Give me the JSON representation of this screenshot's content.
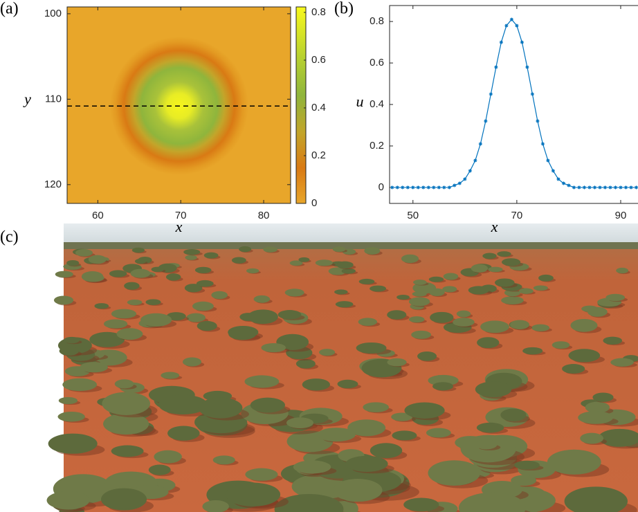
{
  "chart_data": [
    {
      "type": "heatmap",
      "label": "(a)",
      "xlabel": "x",
      "ylabel": "y",
      "xlim": [
        56.3,
        83.25
      ],
      "ylim": [
        122.2,
        99.2
      ],
      "xticks": [
        60,
        70,
        80
      ],
      "yticks": [
        100,
        110,
        120
      ],
      "hline": 110.8,
      "colorbar": {
        "clim": [
          0,
          0.823
        ],
        "ticks": [
          0,
          0.2,
          0.4,
          0.6,
          0.8
        ]
      }
    },
    {
      "type": "line",
      "label": "(b)",
      "xlabel": "x",
      "ylabel": "u",
      "color": "#0072bd",
      "x": [
        46,
        47,
        48,
        49,
        50,
        51,
        52,
        53,
        54,
        55,
        56,
        57,
        58,
        59,
        60,
        61,
        62,
        63,
        64,
        65,
        66,
        67,
        68,
        69,
        70,
        71,
        72,
        73,
        74,
        75,
        76,
        77,
        78,
        79,
        80,
        81,
        82,
        83,
        84,
        85,
        86,
        87,
        88,
        89,
        90,
        91,
        92,
        93
      ],
      "values": [
        0,
        0,
        0,
        0,
        0,
        0,
        0,
        0,
        0,
        0,
        0,
        0,
        0.01,
        0.02,
        0.04,
        0.08,
        0.13,
        0.21,
        0.32,
        0.45,
        0.58,
        0.7,
        0.78,
        0.81,
        0.78,
        0.7,
        0.58,
        0.45,
        0.32,
        0.21,
        0.13,
        0.08,
        0.04,
        0.02,
        0.01,
        0,
        0,
        0,
        0,
        0,
        0,
        0,
        0,
        0,
        0,
        0,
        0,
        0
      ],
      "xlim": [
        45.5,
        94.4
      ],
      "ylim": [
        -0.077,
        0.877
      ],
      "xticks": [
        50,
        70,
        90
      ],
      "yticks": [
        0,
        0.2,
        0.4,
        0.6,
        0.8
      ]
    }
  ],
  "photo": {
    "label": "(c)"
  }
}
